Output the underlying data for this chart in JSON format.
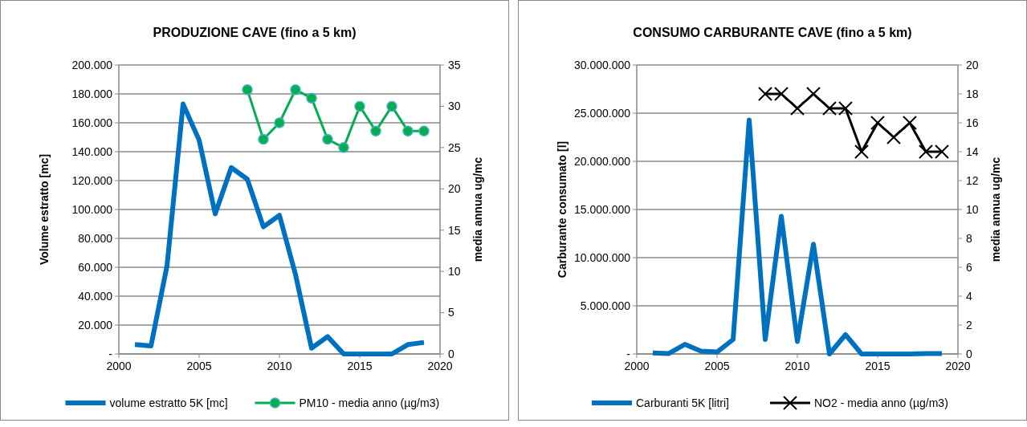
{
  "chart_data": [
    {
      "type": "line",
      "title": "PRODUZIONE CAVE (fino a 5 km)",
      "ylabel": "Volume estratto [mc]",
      "y2label": "media annua ug/mc",
      "x": [
        2001,
        2002,
        2003,
        2004,
        2005,
        2006,
        2007,
        2008,
        2009,
        2010,
        2011,
        2012,
        2013,
        2014,
        2015,
        2016,
        2017,
        2018,
        2019
      ],
      "xlim": [
        2000,
        2020
      ],
      "xticks": [
        2000,
        2005,
        2010,
        2015,
        2020
      ],
      "ylim": [
        0,
        200000
      ],
      "yticks": [
        {
          "value": 0,
          "label": "-"
        },
        {
          "value": 20000,
          "label": "20.000"
        },
        {
          "value": 40000,
          "label": "40.000"
        },
        {
          "value": 60000,
          "label": "60.000"
        },
        {
          "value": 80000,
          "label": "80.000"
        },
        {
          "value": 100000,
          "label": "100.000"
        },
        {
          "value": 120000,
          "label": "120.000"
        },
        {
          "value": 140000,
          "label": "140.000"
        },
        {
          "value": 160000,
          "label": "160.000"
        },
        {
          "value": 180000,
          "label": "180.000"
        },
        {
          "value": 200000,
          "label": "200.000"
        }
      ],
      "y2lim": [
        0,
        35
      ],
      "y2ticks": [
        0,
        5,
        10,
        15,
        20,
        25,
        30,
        35
      ],
      "grid": "y",
      "legend": "bottom",
      "series": [
        {
          "name": "volume estratto 5K [mc]",
          "color": "#0070c0",
          "marker": "none",
          "values": [
            6500,
            5500,
            61000,
            173000,
            148000,
            97000,
            129000,
            121000,
            88000,
            96000,
            55000,
            4000,
            12000,
            0,
            0,
            0,
            0,
            6500,
            8000
          ]
        },
        {
          "name": "PM10 - media anno (µg/m3)",
          "color": "#00b050",
          "axis": "y2",
          "marker": "circle",
          "values": [
            null,
            null,
            null,
            null,
            null,
            null,
            null,
            32,
            26,
            28,
            32,
            31,
            26,
            25,
            30,
            27,
            30,
            27,
            27
          ]
        }
      ]
    },
    {
      "type": "line",
      "title": "CONSUMO CARBURANTE CAVE (fino a 5 km)",
      "ylabel": "Carburante consumato [l]",
      "y2label": "media annua ug/mc",
      "x": [
        2001,
        2002,
        2003,
        2004,
        2005,
        2006,
        2007,
        2008,
        2009,
        2010,
        2011,
        2012,
        2013,
        2014,
        2015,
        2016,
        2017,
        2018,
        2019
      ],
      "xlim": [
        2000,
        2020
      ],
      "xticks": [
        2000,
        2005,
        2010,
        2015,
        2020
      ],
      "ylim": [
        0,
        30000000
      ],
      "yticks": [
        {
          "value": 0,
          "label": "-"
        },
        {
          "value": 5000000,
          "label": "5.000.000"
        },
        {
          "value": 10000000,
          "label": "10.000.000"
        },
        {
          "value": 15000000,
          "label": "15.000.000"
        },
        {
          "value": 20000000,
          "label": "20.000.000"
        },
        {
          "value": 25000000,
          "label": "25.000.000"
        },
        {
          "value": 30000000,
          "label": "30.000.000"
        }
      ],
      "y2lim": [
        0,
        20
      ],
      "y2ticks": [
        0,
        2,
        4,
        6,
        8,
        10,
        12,
        14,
        16,
        18,
        20
      ],
      "grid": "y",
      "legend": "bottom",
      "series": [
        {
          "name": "Carburanti 5K [litri]",
          "color": "#0070c0",
          "marker": "none",
          "values": [
            100000,
            50000,
            1000000,
            300000,
            200000,
            1500000,
            24300000,
            1500000,
            14300000,
            1300000,
            11400000,
            0,
            2000000,
            0,
            0,
            0,
            0,
            50000,
            50000
          ]
        },
        {
          "name": "NO2 - media anno (µg/m3)",
          "color": "#000000",
          "axis": "y2",
          "marker": "cross",
          "values": [
            null,
            null,
            null,
            null,
            null,
            null,
            null,
            18,
            18,
            17,
            18,
            17,
            17,
            14,
            16,
            15,
            16,
            14,
            14
          ]
        }
      ]
    }
  ]
}
